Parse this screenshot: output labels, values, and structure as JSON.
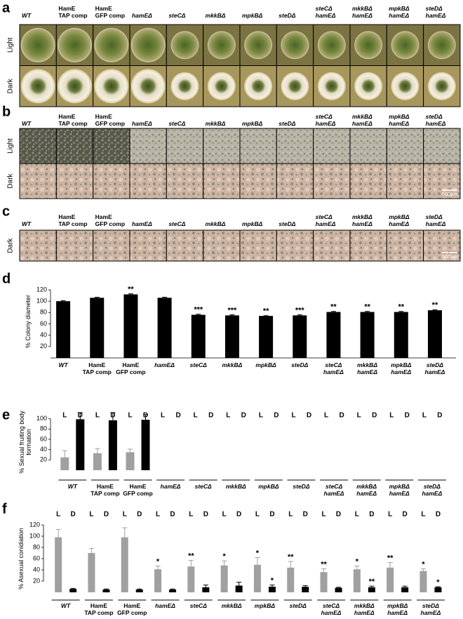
{
  "panel_labels": [
    "a",
    "b",
    "c",
    "d",
    "e",
    "f"
  ],
  "strains": [
    "WT",
    "HamE\nTAP comp",
    "HamE\nGFP comp",
    "hamEΔ",
    "steCΔ",
    "mkkBΔ",
    "mpkBΔ",
    "steDΔ",
    "steCΔ\nhamEΔ",
    "mkkBΔ\nhamEΔ",
    "mpkBΔ\nhamEΔ",
    "steDΔ\nhamEΔ"
  ],
  "photo_panels": [
    {
      "rows": [
        "Light",
        "Dark"
      ]
    },
    {
      "rows": [
        "Light",
        "Dark"
      ],
      "scale_bar": "500μm"
    },
    {
      "rows": [
        "Dark"
      ],
      "scale_bar": "500μm"
    }
  ],
  "chart_data": [
    {
      "type": "bar",
      "y_label": "% Colony diameter",
      "categories": [
        "WT",
        "HamE\nTAP comp",
        "HamE\nGFP comp",
        "hamEΔ",
        "steCΔ",
        "mkkBΔ",
        "mpkBΔ",
        "steDΔ",
        "steCΔ\nhamEΔ",
        "mkkBΔ\nhamEΔ",
        "mpkBΔ\nhamEΔ",
        "steDΔ\nhamEΔ"
      ],
      "values": [
        100,
        106,
        112,
        106,
        76,
        75,
        74,
        75,
        81,
        81,
        81,
        84
      ],
      "errors": [
        1,
        1,
        1,
        1,
        1,
        1,
        0.5,
        1,
        1,
        1,
        1,
        1
      ],
      "annotations": [
        null,
        null,
        "**",
        null,
        "***",
        "***",
        "**",
        "***",
        "**",
        "**",
        "**",
        "**"
      ],
      "color": "#000000",
      "ylim": [
        0,
        120
      ],
      "yticks": [
        20,
        40,
        60,
        80,
        100,
        120
      ]
    },
    {
      "type": "grouped_bar",
      "y_label": "% Sexual fruiting body\nformation",
      "categories": [
        "WT",
        "HamE\nTAP comp",
        "HamE\nGFP comp",
        "hamEΔ",
        "steCΔ",
        "mkkBΔ",
        "mpkBΔ",
        "steDΔ",
        "steCΔ\nhamEΔ",
        "mkkBΔ\nhamEΔ",
        "mpkBΔ\nhamEΔ",
        "steDΔ\nhamEΔ"
      ],
      "series": [
        {
          "name": "L",
          "color": "#a0a0a0",
          "values": [
            25,
            33,
            35,
            0,
            0,
            0,
            0,
            0,
            0,
            0,
            0,
            0
          ],
          "errors": [
            13,
            9,
            6,
            null,
            null,
            null,
            null,
            null,
            null,
            null,
            null,
            null
          ]
        },
        {
          "name": "D",
          "color": "#000000",
          "values": [
            99,
            97,
            98,
            0,
            0,
            0,
            0,
            0,
            0,
            0,
            0,
            0
          ],
          "errors": [
            13,
            15,
            10,
            null,
            null,
            null,
            null,
            null,
            null,
            null,
            null,
            null
          ]
        }
      ],
      "ylim": [
        0,
        120
      ],
      "yticks": [
        20,
        40,
        60,
        80,
        100
      ]
    },
    {
      "type": "grouped_bar",
      "y_label": "% Asexual conidiation",
      "categories": [
        "WT",
        "HamE\nTAP comp",
        "HamE\nGFP comp",
        "hamEΔ",
        "steCΔ",
        "mkkBΔ",
        "mpkBΔ",
        "steDΔ",
        "steCΔ\nhamEΔ",
        "mkkBΔ\nhamEΔ",
        "mpkBΔ\nhamEΔ",
        "steDΔ\nhamEΔ"
      ],
      "series": [
        {
          "name": "L",
          "color": "#a0a0a0",
          "values": [
            98,
            70,
            98,
            41,
            46,
            48,
            49,
            44,
            36,
            41,
            44,
            38
          ],
          "errors": [
            14,
            8,
            17,
            6,
            11,
            8,
            13,
            11,
            6,
            6,
            9,
            4
          ],
          "annotations": [
            null,
            null,
            null,
            "*",
            "**",
            "*",
            "*",
            "**",
            "**",
            "*",
            "**",
            "*"
          ]
        },
        {
          "name": "D",
          "color": "#000000",
          "values": [
            6,
            5,
            5,
            5,
            9,
            12,
            10,
            10,
            8,
            9,
            9,
            9
          ],
          "errors": [
            1,
            1,
            1,
            1,
            4,
            6,
            3,
            2,
            1,
            2,
            2,
            1
          ],
          "annotations": [
            null,
            null,
            null,
            null,
            null,
            null,
            "*",
            null,
            null,
            "**",
            null,
            "*"
          ]
        }
      ],
      "ylim": [
        0,
        120
      ],
      "yticks": [
        20,
        40,
        60,
        80,
        100,
        120
      ]
    }
  ]
}
